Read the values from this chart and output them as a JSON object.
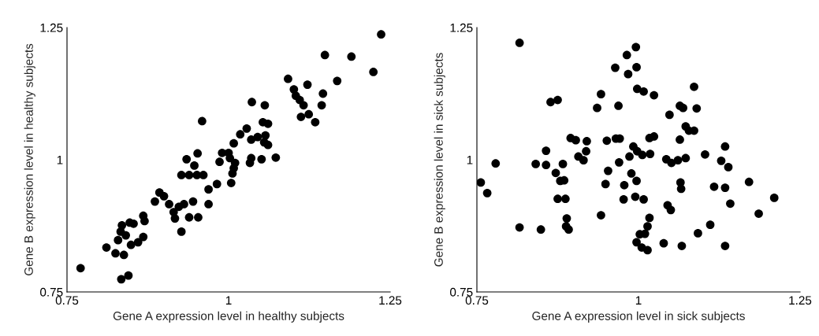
{
  "chart_data": [
    {
      "type": "scatter",
      "xlabel": "Gene A expression level in healthy subjects",
      "ylabel": "Gene B expression level in healthy subjects",
      "color": "#000000",
      "marker": "circle",
      "xlim": [
        0.75,
        1.25
      ],
      "ylim": [
        0.75,
        1.25
      ],
      "xticks": [
        0.75,
        1,
        1.25
      ],
      "yticks": [
        0.75,
        1,
        1.25
      ],
      "x": [
        0.771,
        0.811,
        0.825,
        0.838,
        0.829,
        0.834,
        0.845,
        0.833,
        0.835,
        0.841,
        0.849,
        0.853,
        0.847,
        0.86,
        0.868,
        0.87,
        0.868,
        0.886,
        0.893,
        0.9,
        0.908,
        0.915,
        0.917,
        0.923,
        0.931,
        0.927,
        0.939,
        0.945,
        0.953,
        0.927,
        0.939,
        0.951,
        0.961,
        0.935,
        0.947,
        0.952,
        0.959,
        0.969,
        0.969,
        0.982,
        0.986,
        0.99,
        1.0,
        1.004,
        1.006,
        1.008,
        1.01,
        1.002,
        1.008,
        1.018,
        1.028,
        1.036,
        1.056,
        1.035,
        1.033,
        1.035,
        1.045,
        1.051,
        1.053,
        1.061,
        1.057,
        1.055,
        1.061,
        1.073,
        1.092,
        1.101,
        1.104,
        1.11,
        1.116,
        1.112,
        1.124,
        1.122,
        1.134,
        1.144,
        1.146,
        1.149,
        1.168,
        1.19,
        1.224,
        1.236
      ],
      "values": [
        0.795,
        0.834,
        0.823,
        0.82,
        0.848,
        0.774,
        0.781,
        0.864,
        0.876,
        0.857,
        0.839,
        0.879,
        0.881,
        0.844,
        0.854,
        0.884,
        0.894,
        0.921,
        0.938,
        0.931,
        0.916,
        0.901,
        0.889,
        0.911,
        0.916,
        0.864,
        0.891,
        0.921,
        0.891,
        0.971,
        0.971,
        0.971,
        0.971,
        1.001,
        0.989,
        1.012,
        1.073,
        0.916,
        0.944,
        0.954,
        0.996,
        1.013,
        1.013,
        0.956,
        0.974,
        0.984,
        0.994,
        1.003,
        1.031,
        1.048,
        1.059,
        1.109,
        1.103,
        1.038,
        0.994,
        1.003,
        1.043,
        1.001,
        1.071,
        1.068,
        1.046,
        1.033,
        1.028,
        1.004,
        1.153,
        1.133,
        1.121,
        1.113,
        1.103,
        1.081,
        1.086,
        1.142,
        1.071,
        1.103,
        1.125,
        1.198,
        1.149,
        1.195,
        1.166,
        1.237
      ]
    },
    {
      "type": "scatter",
      "xlabel": "Gene A expression level in sick subjects",
      "ylabel": "Gene B expression level in sick subjects",
      "color": "#000000",
      "marker": "circle",
      "xlim": [
        0.75,
        1.25
      ],
      "ylim": [
        0.75,
        1.25
      ],
      "xticks": [
        0.75,
        1,
        1.25
      ],
      "yticks": [
        0.75,
        1,
        1.25
      ],
      "x": [
        0.756,
        0.766,
        0.779,
        0.816,
        0.816,
        0.841,
        0.849,
        0.857,
        0.857,
        0.864,
        0.875,
        0.872,
        0.879,
        0.885,
        0.883,
        0.875,
        0.887,
        0.889,
        0.888,
        0.892,
        0.895,
        0.903,
        0.907,
        0.915,
        0.919,
        0.92,
        0.936,
        0.942,
        0.942,
        0.949,
        0.951,
        0.953,
        0.964,
        0.965,
        0.971,
        0.969,
        0.97,
        0.978,
        0.977,
        0.982,
        0.984,
        0.986,
        0.989,
        0.996,
        0.997,
        0.997,
        0.992,
        0.998,
        1.006,
        0.995,
        1.008,
        0.998,
        1.008,
        1.024,
        1.018,
        1.017,
        1.024,
        1.017,
        1.014,
        1.01,
        1.002,
        0.997,
        1.005,
        1.014,
        1.039,
        1.043,
        1.051,
        1.061,
        1.073,
        1.048,
        1.064,
        1.069,
        1.064,
        1.073,
        1.078,
        1.086,
        1.086,
        1.09,
        1.065,
        1.066,
        1.045,
        1.05,
        1.067,
        1.092,
        1.103,
        1.111,
        1.117,
        1.128,
        1.134,
        1.139,
        1.134,
        1.142,
        1.134,
        1.171,
        1.186,
        1.21
      ],
      "values": [
        0.957,
        0.937,
        0.993,
        1.221,
        0.872,
        0.992,
        0.868,
        0.99,
        1.017,
        1.109,
        1.113,
        0.975,
        0.96,
        0.961,
        0.992,
        0.926,
        0.926,
        0.889,
        0.874,
        0.868,
        1.041,
        1.037,
        1.006,
        0.999,
        1.016,
        1.035,
        1.098,
        1.124,
        0.895,
        0.954,
        1.036,
        0.979,
        1.174,
        1.04,
        1.04,
        1.102,
        0.995,
        0.952,
        0.925,
        1.198,
        1.162,
        1.006,
        0.974,
        1.213,
        1.175,
        0.96,
        1.025,
        1.016,
        1.009,
        0.93,
        0.925,
        1.134,
        1.129,
        1.122,
        1.011,
        1.041,
        1.044,
        0.89,
        0.874,
        0.86,
        0.859,
        0.844,
        0.834,
        0.829,
        0.842,
        1.001,
        0.994,
        0.999,
        1.003,
        1.085,
        1.102,
        1.098,
        1.038,
        1.063,
        1.055,
        1.055,
        1.138,
        1.097,
        0.957,
        0.945,
        0.914,
        0.905,
        0.837,
        0.861,
        1.01,
        0.877,
        0.949,
        0.998,
        1.025,
        0.986,
        0.947,
        0.917,
        0.837,
        0.958,
        0.898,
        0.928
      ]
    }
  ]
}
